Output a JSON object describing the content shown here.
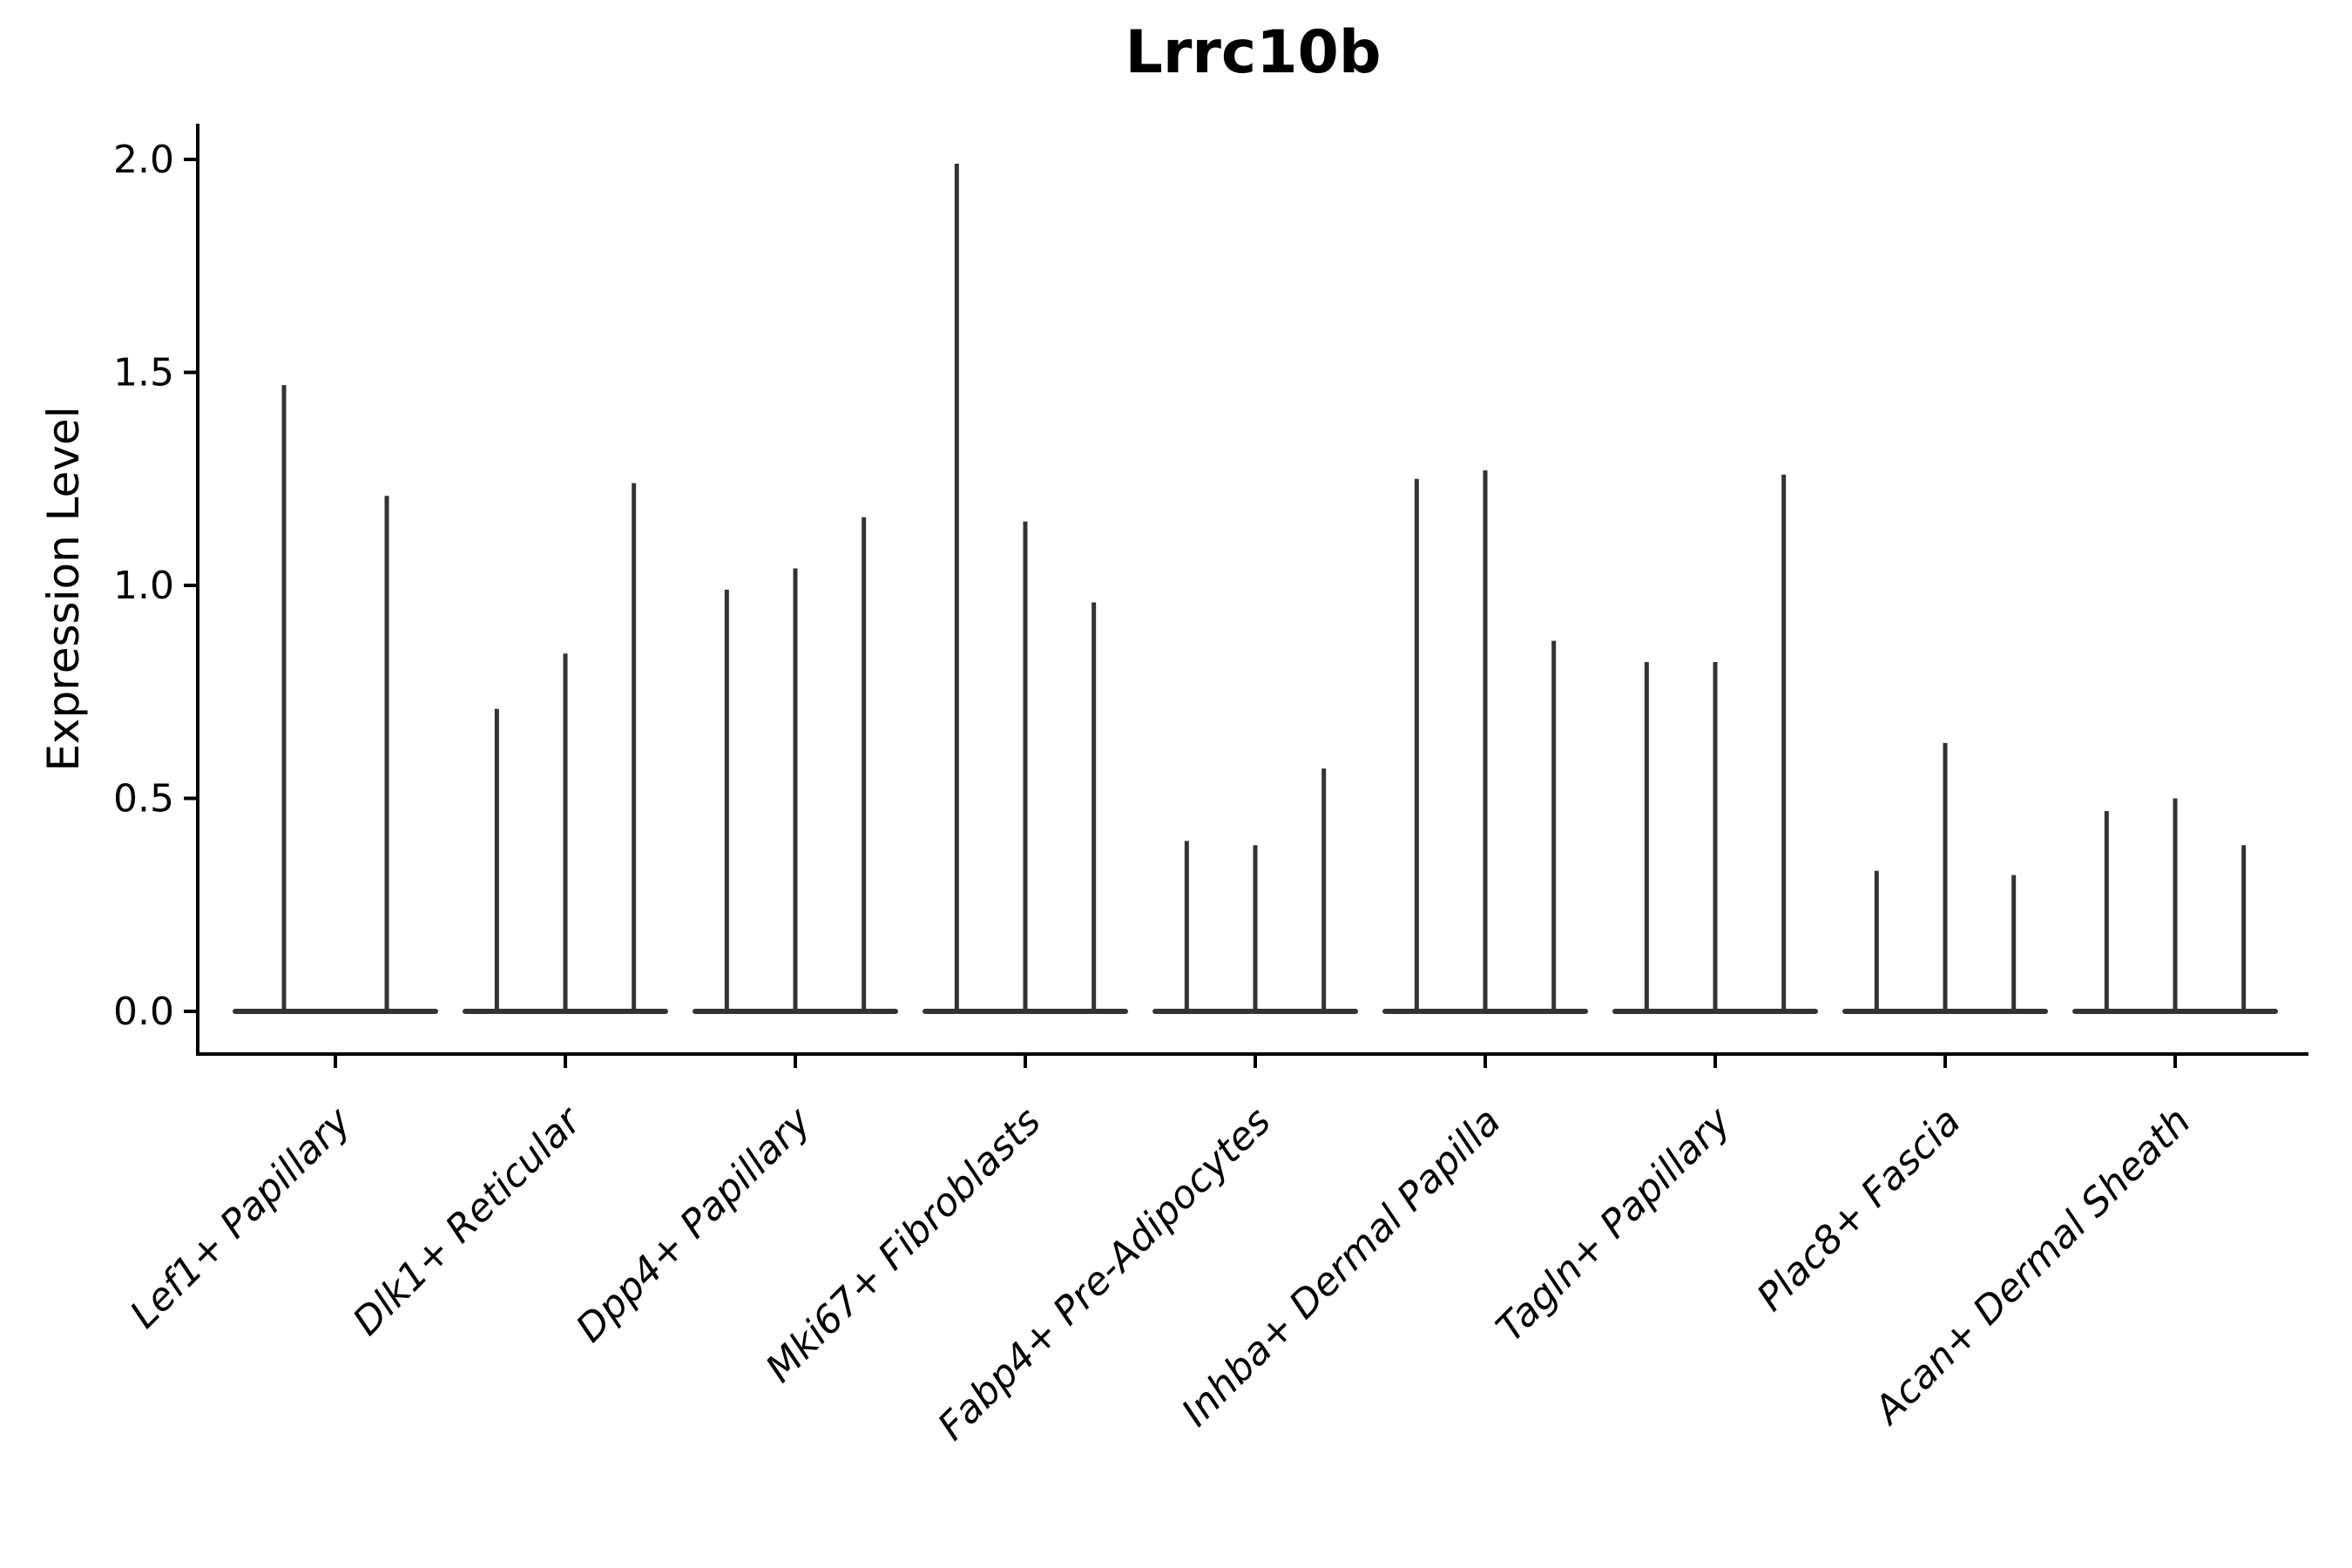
{
  "chart_data": {
    "type": "violin",
    "title": "Lrrc10b",
    "ylabel": "Expression Level",
    "xlabel": "",
    "ylim": [
      -0.1,
      2.08
    ],
    "yticks": [
      0.0,
      0.5,
      1.0,
      1.5,
      2.0
    ],
    "ytick_labels": [
      "0.0",
      "0.5",
      "1.0",
      "1.5",
      "2.0"
    ],
    "grid": false,
    "legend": "none",
    "style_note": "Single-cell expression violin plot; each violin is collapsed to a flat dark bar at 0 with a thin vertical spike rising to the maximum expression value",
    "groups": [
      {
        "category": "Lef1+ Papillary",
        "violin_max_values": [
          1.47,
          1.21
        ]
      },
      {
        "category": "Dlk1+ Reticular",
        "violin_max_values": [
          0.71,
          0.84,
          1.24
        ]
      },
      {
        "category": "Dpp4+ Papillary",
        "violin_max_values": [
          0.99,
          1.04,
          1.16
        ]
      },
      {
        "category": "Mki67+ Fibroblasts",
        "violin_max_values": [
          1.99,
          1.15,
          0.96
        ]
      },
      {
        "category": "Fabp4+ Pre-Adipocytes",
        "violin_max_values": [
          0.4,
          0.39,
          0.57
        ]
      },
      {
        "category": "Inhba+ Dermal Papilla",
        "violin_max_values": [
          1.25,
          1.27,
          0.87
        ]
      },
      {
        "category": "Tagln+ Papillary",
        "violin_max_values": [
          0.82,
          0.82,
          1.26
        ]
      },
      {
        "category": "Plac8+ Fascia",
        "violin_max_values": [
          0.33,
          0.63,
          0.32
        ]
      },
      {
        "category": "Acan+ Dermal Sheath",
        "violin_max_values": [
          0.47,
          0.5,
          0.39
        ]
      }
    ],
    "colors": {
      "ink": "#333333",
      "axis": "#000000",
      "text": "#000000",
      "background": "#ffffff"
    }
  }
}
